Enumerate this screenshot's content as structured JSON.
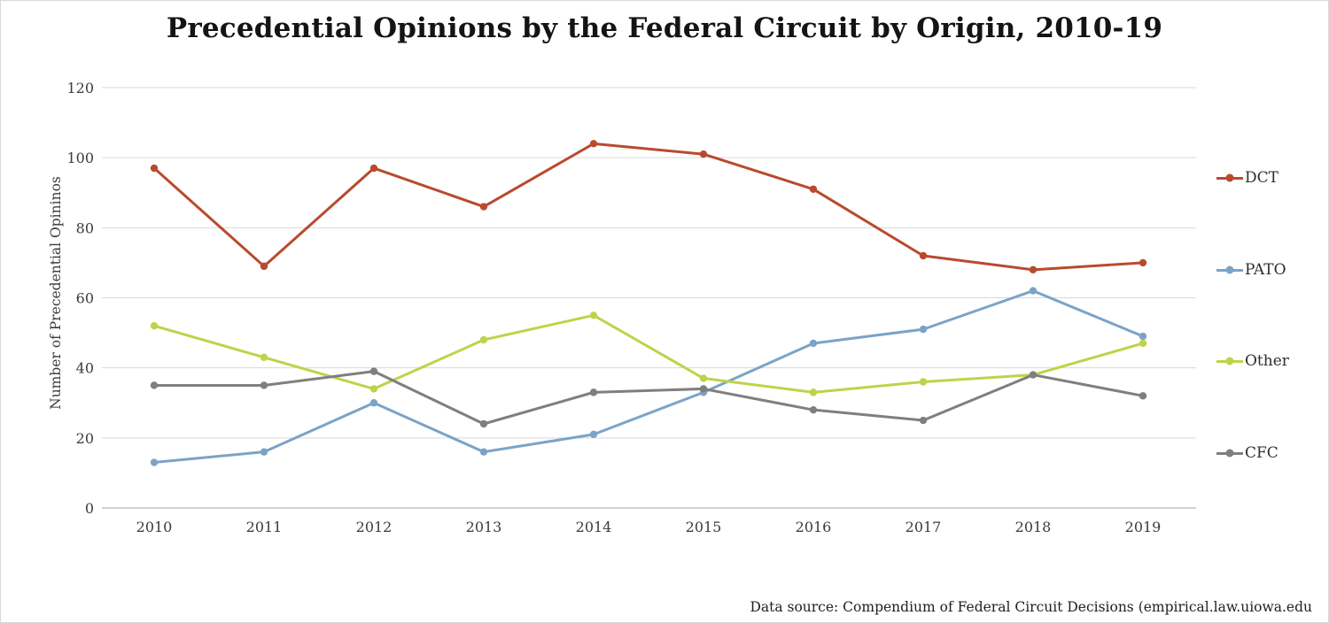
{
  "title": "Precedential Opinions by the Federal Circuit by Origin, 2010-19",
  "footer": "Data source: Compendium of Federal Circuit Decisions (empirical.law.uiowa.edu",
  "chart_data": {
    "type": "line",
    "title": "Precedential Opinions by the Federal Circuit by Origin, 2010-19",
    "categories": [
      "2010",
      "2011",
      "2012",
      "2013",
      "2014",
      "2015",
      "2016",
      "2017",
      "2018",
      "2019"
    ],
    "series": [
      {
        "name": "DCT",
        "color": "#b94a2e",
        "values": [
          97,
          69,
          97,
          86,
          104,
          101,
          91,
          72,
          68,
          70
        ]
      },
      {
        "name": "PATO",
        "color": "#7ba3c7",
        "values": [
          13,
          16,
          30,
          16,
          21,
          33,
          47,
          51,
          62,
          49
        ]
      },
      {
        "name": "Other",
        "color": "#c0d24a",
        "values": [
          52,
          43,
          34,
          48,
          55,
          37,
          33,
          36,
          38,
          47
        ]
      },
      {
        "name": "CFC",
        "color": "#7f7f7f",
        "values": [
          35,
          35,
          39,
          24,
          33,
          34,
          28,
          25,
          38,
          32
        ]
      }
    ],
    "xlabel": "",
    "ylabel": "Number of Precedential Opininos",
    "ylim": [
      0,
      120
    ],
    "yticks": [
      0,
      20,
      40,
      60,
      80,
      100,
      120
    ],
    "grid": true,
    "gridline_color": "#d9d9d9",
    "axisline_color": "#c3c3c3",
    "legend_position": "right"
  }
}
